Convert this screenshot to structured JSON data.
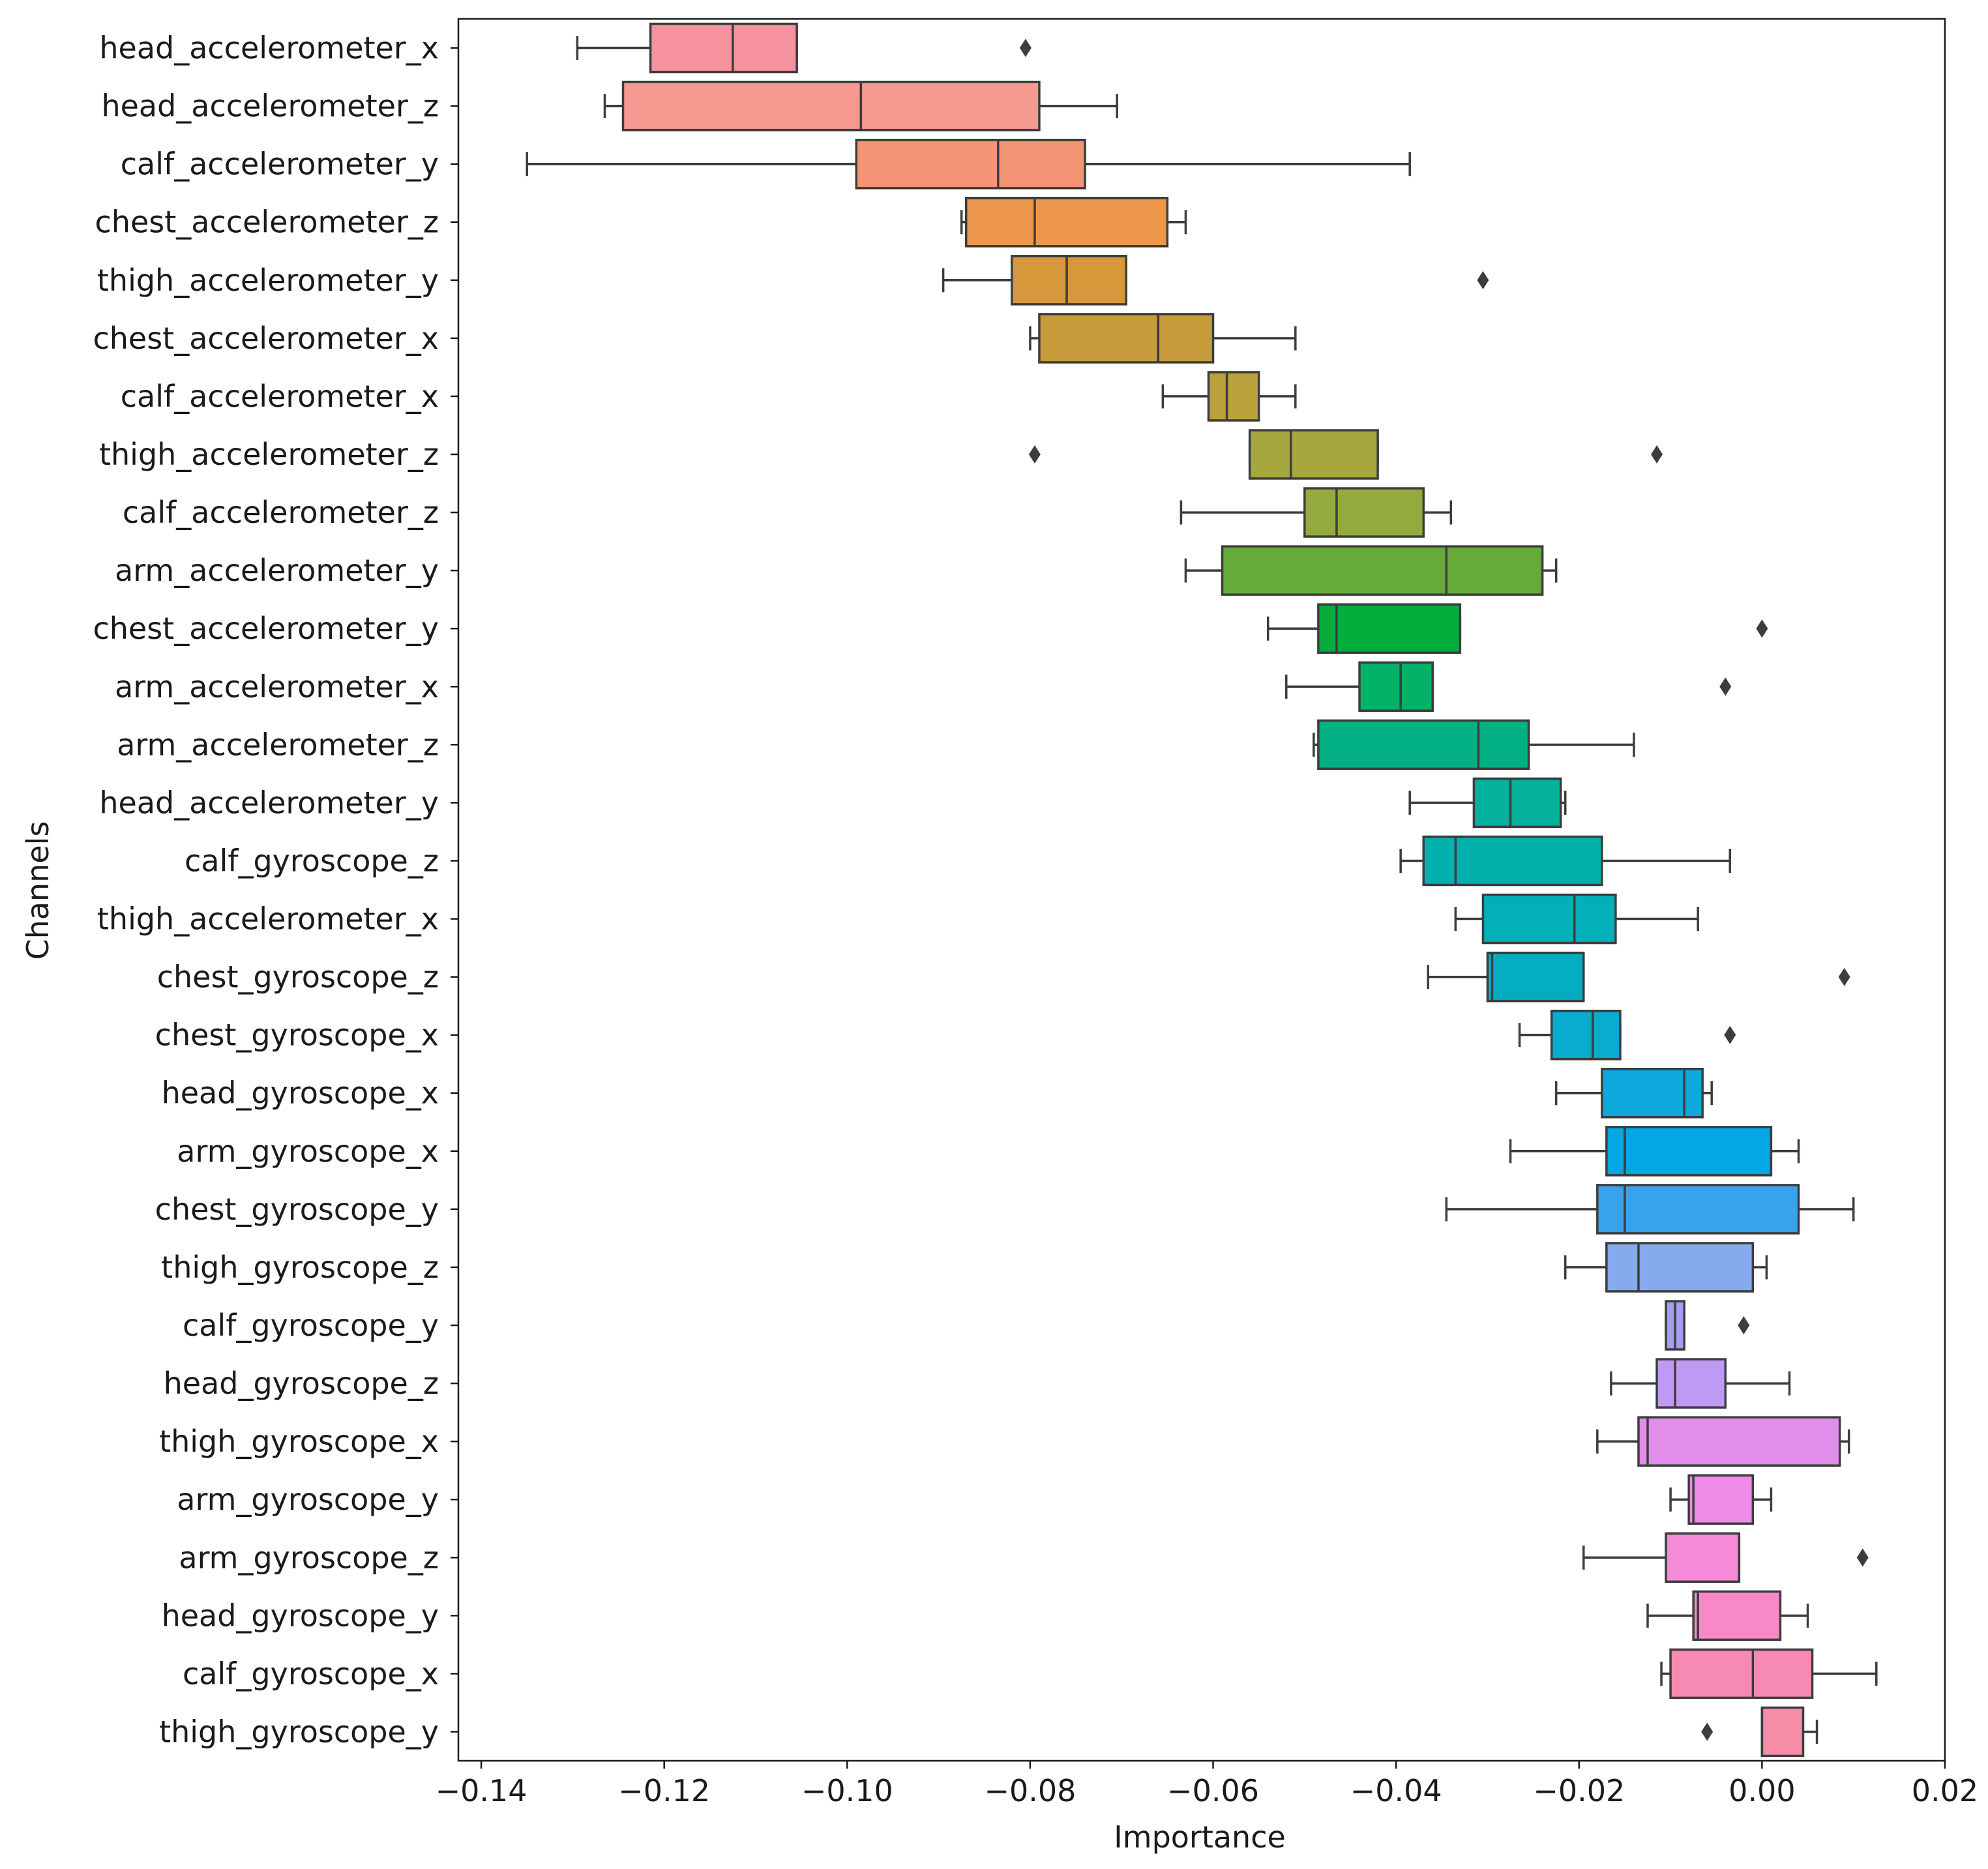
{
  "chart_data": {
    "type": "boxplot",
    "orientation": "horizontal",
    "title": "",
    "xlabel": "Importance",
    "ylabel": "Channels",
    "xlim": [
      -0.1425,
      0.02
    ],
    "xticks": [
      -0.14,
      -0.12,
      -0.1,
      -0.08,
      -0.06,
      -0.04,
      -0.02,
      0.0,
      0.02
    ],
    "xtick_labels": [
      "−0.14",
      "−0.12",
      "−0.10",
      "−0.08",
      "−0.06",
      "−0.04",
      "−0.02",
      "0.00",
      "0.02"
    ],
    "grid": false,
    "series": [
      {
        "name": "head_accelerometer_x",
        "color": "#f7929f",
        "whislo": -0.1295,
        "q1": -0.1215,
        "median": -0.1125,
        "q3": -0.1055,
        "whishi": -0.1055,
        "outliers": [
          -0.0805
        ]
      },
      {
        "name": "head_accelerometer_z",
        "color": "#f79a91",
        "whislo": -0.1265,
        "q1": -0.1245,
        "median": -0.0985,
        "q3": -0.079,
        "whishi": -0.0705,
        "outliers": []
      },
      {
        "name": "calf_accelerometer_y",
        "color": "#f59475",
        "whislo": -0.135,
        "q1": -0.099,
        "median": -0.0835,
        "q3": -0.074,
        "whishi": -0.0385,
        "outliers": []
      },
      {
        "name": "chest_accelerometer_z",
        "color": "#ec9749",
        "whislo": -0.0875,
        "q1": -0.087,
        "median": -0.0795,
        "q3": -0.065,
        "whishi": -0.063,
        "outliers": []
      },
      {
        "name": "thigh_accelerometer_y",
        "color": "#d7973b",
        "whislo": -0.0895,
        "q1": -0.082,
        "median": -0.076,
        "q3": -0.0695,
        "whishi": -0.0695,
        "outliers": [
          -0.0305
        ]
      },
      {
        "name": "chest_accelerometer_x",
        "color": "#c79b3c",
        "whislo": -0.08,
        "q1": -0.079,
        "median": -0.066,
        "q3": -0.06,
        "whishi": -0.051,
        "outliers": []
      },
      {
        "name": "calf_accelerometer_x",
        "color": "#baa13c",
        "whislo": -0.0655,
        "q1": -0.0605,
        "median": -0.0585,
        "q3": -0.055,
        "whishi": -0.051,
        "outliers": []
      },
      {
        "name": "thigh_accelerometer_z",
        "color": "#a6a83d",
        "whislo": -0.056,
        "q1": -0.056,
        "median": -0.0515,
        "q3": -0.042,
        "whishi": -0.042,
        "outliers": [
          -0.0795,
          -0.0115
        ]
      },
      {
        "name": "calf_accelerometer_z",
        "color": "#93ab3d",
        "whislo": -0.0635,
        "q1": -0.05,
        "median": -0.0465,
        "q3": -0.037,
        "whishi": -0.034,
        "outliers": []
      },
      {
        "name": "arm_accelerometer_y",
        "color": "#66ab3a",
        "whislo": -0.063,
        "q1": -0.059,
        "median": -0.0345,
        "q3": -0.024,
        "whishi": -0.0225,
        "outliers": []
      },
      {
        "name": "chest_accelerometer_y",
        "color": "#05ad3c",
        "whislo": -0.054,
        "q1": -0.0485,
        "median": -0.0465,
        "q3": -0.033,
        "whishi": -0.033,
        "outliers": [
          0.0
        ]
      },
      {
        "name": "arm_accelerometer_x",
        "color": "#02b267",
        "whislo": -0.052,
        "q1": -0.044,
        "median": -0.0395,
        "q3": -0.036,
        "whishi": -0.036,
        "outliers": [
          -0.004
        ]
      },
      {
        "name": "arm_accelerometer_z",
        "color": "#03b083",
        "whislo": -0.049,
        "q1": -0.0485,
        "median": -0.031,
        "q3": -0.0255,
        "whishi": -0.014,
        "outliers": []
      },
      {
        "name": "head_accelerometer_y",
        "color": "#03b19c",
        "whislo": -0.0385,
        "q1": -0.0315,
        "median": -0.0275,
        "q3": -0.022,
        "whishi": -0.0215,
        "outliers": []
      },
      {
        "name": "calf_gyroscope_z",
        "color": "#03b1ac",
        "whislo": -0.0395,
        "q1": -0.037,
        "median": -0.0335,
        "q3": -0.0175,
        "whishi": -0.0035,
        "outliers": []
      },
      {
        "name": "thigh_accelerometer_x",
        "color": "#03afb8",
        "whislo": -0.0335,
        "q1": -0.0305,
        "median": -0.0205,
        "q3": -0.016,
        "whishi": -0.007,
        "outliers": []
      },
      {
        "name": "chest_gyroscope_z",
        "color": "#05adc3",
        "whislo": -0.0365,
        "q1": -0.03,
        "median": -0.0295,
        "q3": -0.0195,
        "whishi": -0.0195,
        "outliers": [
          0.009
        ]
      },
      {
        "name": "chest_gyroscope_x",
        "color": "#09abcf",
        "whislo": -0.0265,
        "q1": -0.023,
        "median": -0.0185,
        "q3": -0.0155,
        "whishi": -0.0155,
        "outliers": [
          -0.0035
        ]
      },
      {
        "name": "head_gyroscope_x",
        "color": "#0da9dc",
        "whislo": -0.0225,
        "q1": -0.0175,
        "median": -0.0085,
        "q3": -0.0065,
        "whishi": -0.0055,
        "outliers": []
      },
      {
        "name": "arm_gyroscope_x",
        "color": "#02a7e4",
        "whislo": -0.0275,
        "q1": -0.017,
        "median": -0.015,
        "q3": 0.001,
        "whishi": 0.004,
        "outliers": []
      },
      {
        "name": "chest_gyroscope_y",
        "color": "#37a3ec",
        "whislo": -0.0345,
        "q1": -0.018,
        "median": -0.015,
        "q3": 0.004,
        "whishi": 0.01,
        "outliers": []
      },
      {
        "name": "thigh_gyroscope_z",
        "color": "#87a9ee",
        "whislo": -0.0215,
        "q1": -0.017,
        "median": -0.0135,
        "q3": -0.001,
        "whishi": 0.0005,
        "outliers": []
      },
      {
        "name": "calf_gyroscope_y",
        "color": "#a49ef2",
        "whislo": -0.0105,
        "q1": -0.0105,
        "median": -0.0095,
        "q3": -0.0085,
        "whishi": -0.0085,
        "outliers": [
          -0.002
        ]
      },
      {
        "name": "head_gyroscope_z",
        "color": "#bf9af4",
        "whislo": -0.0165,
        "q1": -0.0115,
        "median": -0.0095,
        "q3": -0.004,
        "whishi": 0.003,
        "outliers": []
      },
      {
        "name": "thigh_gyroscope_x",
        "color": "#e18eea",
        "whislo": -0.018,
        "q1": -0.0135,
        "median": -0.0125,
        "q3": 0.0085,
        "whishi": 0.0095,
        "outliers": []
      },
      {
        "name": "arm_gyroscope_y",
        "color": "#f08be8",
        "whislo": -0.01,
        "q1": -0.008,
        "median": -0.0075,
        "q3": -0.001,
        "whishi": 0.001,
        "outliers": []
      },
      {
        "name": "arm_gyroscope_z",
        "color": "#f58ad8",
        "whislo": -0.0195,
        "q1": -0.0105,
        "median": -0.0025,
        "q3": -0.0025,
        "whishi": -0.0025,
        "outliers": [
          0.011
        ]
      },
      {
        "name": "head_gyroscope_y",
        "color": "#f78ac6",
        "whislo": -0.0125,
        "q1": -0.0075,
        "median": -0.007,
        "q3": 0.002,
        "whishi": 0.005,
        "outliers": []
      },
      {
        "name": "calf_gyroscope_x",
        "color": "#f78ab3",
        "whislo": -0.011,
        "q1": -0.01,
        "median": -0.001,
        "q3": 0.0055,
        "whishi": 0.0125,
        "outliers": []
      },
      {
        "name": "thigh_gyroscope_y",
        "color": "#f78ca6",
        "whislo": 0.0,
        "q1": 0.0,
        "median": 0.0,
        "q3": 0.0045,
        "whishi": 0.006,
        "outliers": [
          -0.006
        ]
      }
    ]
  }
}
